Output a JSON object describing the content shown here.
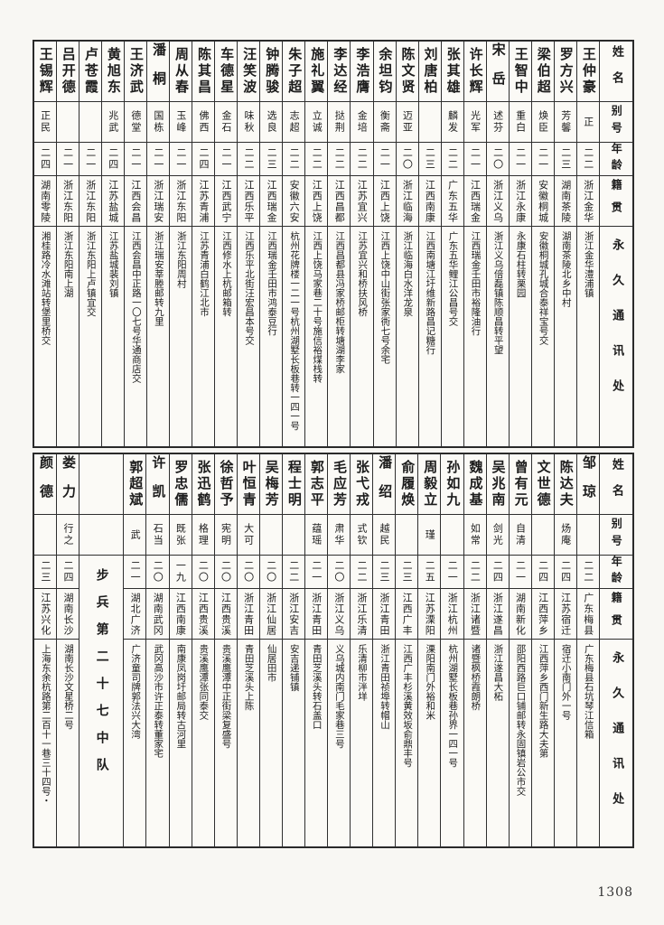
{
  "page": {
    "number": "1308"
  },
  "header_labels": {
    "name": "姓名",
    "alias": "别号",
    "age": "年龄",
    "origin": "籍贯",
    "address": "永久通讯处"
  },
  "tables": [
    {
      "entries": [
        {
          "name": "王仲豪",
          "alias": "正",
          "age": "二二",
          "origin": "浙江金华",
          "address": "浙江金华澧浦镇"
        },
        {
          "name": "罗方兴",
          "alias": "芳馨",
          "age": "二三",
          "origin": "湖南茶陵",
          "address": "湖南茶陵北乡中村"
        },
        {
          "name": "梁伯超",
          "alias": "焕臣",
          "age": "二一",
          "origin": "安徽桐城",
          "address": "安徽桐城孔城合泰祥宝号交"
        },
        {
          "name": "王智中",
          "alias": "重白",
          "age": "二一",
          "origin": "浙江永康",
          "address": "永康石柱转栗园"
        },
        {
          "name": "宋岳",
          "alias": "述芬",
          "age": "二〇",
          "origin": "浙江义乌",
          "address": "浙江义乌倍磊镇陈顺昌转平望"
        },
        {
          "name": "许长辉",
          "alias": "光军",
          "age": "二一",
          "origin": "江西瑞金",
          "address": "江西瑞金壬田市裕隆油行"
        },
        {
          "name": "张其雄",
          "alias": "麟发",
          "age": "二二",
          "origin": "广东五华",
          "address": "广东五华鲤江公昌号交"
        },
        {
          "name": "刘唐柏",
          "alias": "",
          "age": "二三",
          "origin": "江西南康",
          "address": "江西南塘江圩维新路昌记糖行"
        },
        {
          "name": "陈文贤",
          "alias": "迈亚",
          "age": "二〇",
          "origin": "浙江临海",
          "address": "浙江临海白水洋龙泉"
        },
        {
          "name": "余坦钧",
          "alias": "衡斋",
          "age": "二一",
          "origin": "江西上饶",
          "address": "江西上饶中山街张家衖七号余宅"
        },
        {
          "name": "李浩膺",
          "alias": "金培",
          "age": "二二",
          "origin": "江苏宜兴",
          "address": "江苏宜兴和桥扶风桥"
        },
        {
          "name": "李达经",
          "alias": "挞荆",
          "age": "二二",
          "origin": "江西昌都",
          "address": "江西昌都县冯家桥邮柜转塘湖李家"
        },
        {
          "name": "施礼翼",
          "alias": "立诚",
          "age": "二二",
          "origin": "江西上饶",
          "address": "江西上饶马家巷二十号施信裕煤栈转"
        },
        {
          "name": "朱子超",
          "alias": "志超",
          "age": "二二",
          "origin": "安徽六安",
          "address": "杭州花牌楼一二一号杭州湖墅长板巷转一四一号"
        },
        {
          "name": "钟腾骏",
          "alias": "选良",
          "age": "二三",
          "origin": "江西瑞金",
          "address": "江西瑞金壬田市鸿泰豆行"
        },
        {
          "name": "汪笑波",
          "alias": "味秋",
          "age": "二二",
          "origin": "江西乐平",
          "address": "江西乐平北街汪宏昌本号交"
        },
        {
          "name": "车德星",
          "alias": "金石",
          "age": "二一",
          "origin": "江西武宁",
          "address": "江西修水上杭邮箱转"
        },
        {
          "name": "陈其昌",
          "alias": "佛西",
          "age": "二四",
          "origin": "江苏青浦",
          "address": "江苏青浦白鹤江北市"
        },
        {
          "name": "周从春",
          "alias": "玉峰",
          "age": "二一",
          "origin": "浙江东阳",
          "address": "浙江东阳周村"
        },
        {
          "name": "潘桐",
          "alias": "国栋",
          "age": "二一",
          "origin": "浙江瑞安",
          "address": "浙江瑞安莘塍邮转九里"
        },
        {
          "name": "王济武",
          "alias": "德堂",
          "age": "二一",
          "origin": "江西会昌",
          "address": "江西会昌中正路一〇七号华通商店交"
        },
        {
          "name": "黄旭东",
          "alias": "兆武",
          "age": "二四",
          "origin": "江苏盐城",
          "address": "江苏盐城裴刘镇"
        },
        {
          "name": "卢苍霞",
          "alias": "",
          "age": "二一",
          "origin": "浙江东阳",
          "address": "浙江东阳上卢镇宜交"
        },
        {
          "name": "吕开德",
          "alias": "",
          "age": "二一",
          "origin": "浙江东阳",
          "address": "浙江东阳南上湖"
        },
        {
          "name": "王锡辉",
          "alias": "正民",
          "age": "二四",
          "origin": "湖南零陵",
          "address": "湘桂路冷水滩站转堡里桥交"
        }
      ]
    },
    {
      "entries": [
        {
          "name": "邹琼",
          "alias": "",
          "age": "二二",
          "origin": "广东梅县",
          "address": "广东梅县石坑琴江信箱"
        },
        {
          "name": "陈达夫",
          "alias": "炀庵",
          "age": "二四",
          "origin": "江苏宿迁",
          "address": "宿迁小南门外一号"
        },
        {
          "name": "文世德",
          "alias": "",
          "age": "二四",
          "origin": "江西萍乡",
          "address": "江西萍乡西门新生路大夫第"
        },
        {
          "name": "曾有元",
          "alias": "自清",
          "age": "二一",
          "origin": "湖南新化",
          "address": "邵阳西路巨口铺邮转永固镇岩公市交"
        },
        {
          "name": "吴兆南",
          "alias": "剑光",
          "age": "二四",
          "origin": "浙江遂昌",
          "address": "浙江遂昌大柘"
        },
        {
          "name": "魏成基",
          "alias": "如常",
          "age": "二二",
          "origin": "浙江诸暨",
          "address": "诸暨枫桥霞朗桥"
        },
        {
          "name": "孙如九",
          "alias": "",
          "age": "二一",
          "origin": "浙江杭州",
          "address": "杭州湖墅长板巷孙界一四一号"
        },
        {
          "name": "周毅立",
          "alias": "瑾",
          "age": "二五",
          "origin": "江苏溧阳",
          "address": "溧阳南门外裕和米"
        },
        {
          "name": "俞履焕",
          "alias": "",
          "age": "二三",
          "origin": "江西广丰",
          "address": "江西广丰杉溪黄效坂俞鼎丰号"
        },
        {
          "name": "潘绍",
          "alias": "越民",
          "age": "二三",
          "origin": "浙江青田",
          "address": "浙江青田祯埠转帽山"
        },
        {
          "name": "张弋戎",
          "alias": "式钦",
          "age": "二二",
          "origin": "浙江乐清",
          "address": "乐清柳市泮垟"
        },
        {
          "name": "毛应芳",
          "alias": "肃华",
          "age": "二〇",
          "origin": "浙江义乌",
          "address": "义乌城内南门毛家巷三号"
        },
        {
          "name": "郭志平",
          "alias": "蕴瑶",
          "age": "二一",
          "origin": "浙江青田",
          "address": "青田芝溪头转石盖口"
        },
        {
          "name": "程士明",
          "alias": "",
          "age": "二二",
          "origin": "浙江安吉",
          "address": "安吉递铺镇"
        },
        {
          "name": "吴梅芳",
          "alias": "",
          "age": "二〇",
          "origin": "浙江仙居",
          "address": "仙居田市"
        },
        {
          "name": "叶恒青",
          "alias": "大可",
          "age": "二〇",
          "origin": "浙江青田",
          "address": "青田芝溪头上陈"
        },
        {
          "name": "徐哲予",
          "alias": "宪明",
          "age": "二〇",
          "origin": "江西贵溪",
          "address": "贵溪鹰潭中正街梁复盛号"
        },
        {
          "name": "张迅鹤",
          "alias": "格理",
          "age": "二〇",
          "origin": "江西贵溪",
          "address": "贵溪鹰潭张同泰交"
        },
        {
          "name": "罗忠儒",
          "alias": "既张",
          "age": "一九",
          "origin": "江西南康",
          "address": "南康凤岗圩邮局转古河里"
        },
        {
          "name": "许凯",
          "alias": "石当",
          "age": "二〇",
          "origin": "湖南武冈",
          "address": "武冈高沙市许正泰转董家宅"
        },
        {
          "name": "郭超斌",
          "alias": "武",
          "age": "二一",
          "origin": "湖北广济",
          "address": "广济童司牌郭法兴大湾"
        },
        {
          "type": "unit",
          "text": "步兵第二十七中队"
        },
        {
          "name": "娄力",
          "alias": "行之",
          "age": "二四",
          "origin": "湖南长沙",
          "address": "湖南长沙文星桥二号"
        },
        {
          "name": "颜德",
          "alias": "",
          "age": "二三",
          "origin": "江苏兴化",
          "address": "上海东余杭路第二百十一巷三十四号・"
        }
      ]
    }
  ]
}
